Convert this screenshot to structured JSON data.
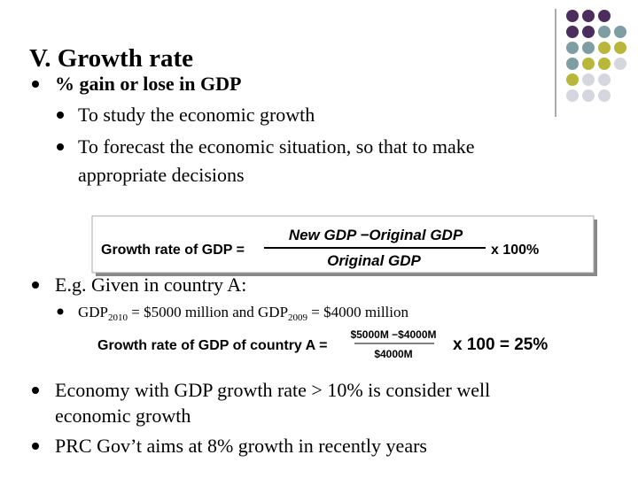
{
  "title": "V. Growth rate",
  "point1": {
    "text": "% gain or lose in GDP",
    "sub": [
      [
        "To study the economic growth"
      ],
      [
        "To forecast the economic situation, so that to make",
        "appropriate decisions"
      ]
    ]
  },
  "formula1": {
    "lhs": "Growth rate of GDP =",
    "numerator": "New GDP −Original GDP",
    "denominator": "Original GDP",
    "rhs": "x 100%"
  },
  "example": {
    "intro": "E.g. Given in country A:",
    "given": {
      "text1": "GDP",
      "sub1": "2010",
      "text2": " = $5000 million and GDP",
      "sub2": "2009",
      "text3": " = $4000 million"
    }
  },
  "formula2": {
    "lhs": "Growth rate of GDP of country A =",
    "numerator": "$5000M −$4000M",
    "denominator": "$4000M",
    "rhs": "x 100 = 25%"
  },
  "point3": [
    "Economy with GDP growth rate > 10% is consider well",
    "economic growth"
  ],
  "point4": "PRC Gov’t aims at 8% growth in recently years"
}
